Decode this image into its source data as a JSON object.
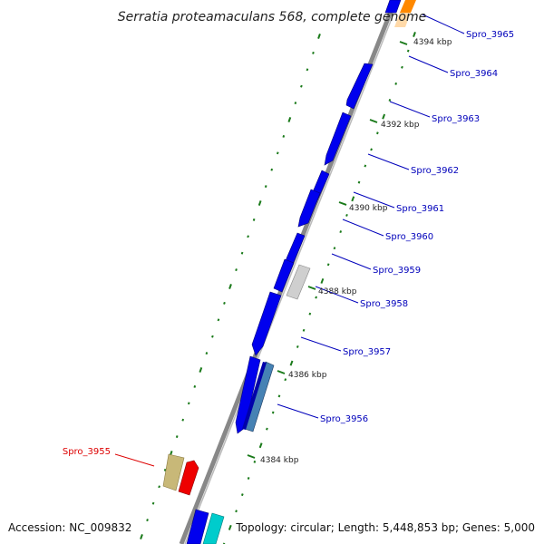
{
  "title": "Serratia proteamaculans 568, complete genome",
  "footer": {
    "accession": "Accession: NC_009832",
    "summary": "Topology: circular; Length: 5,448,853 bp; Genes: 5,000"
  },
  "colors": {
    "backbone": "#888888",
    "gene_blue": "#0000ee",
    "gene_highlight": "#ee0000",
    "gene_gray": "#c8c8c8",
    "gene_olive": "#c8b878",
    "gene_steel": "#4682b4",
    "gene_cyan": "#00cccc",
    "gene_orange": "#ff8800",
    "tick": "#1a7a1a",
    "label_blue": "#0000bb",
    "label_red": "#dd0000"
  },
  "scale": {
    "ticks": [
      "4394 kbp",
      "4392 kbp",
      "4390 kbp",
      "4388 kbp",
      "4386 kbp",
      "4384 kbp"
    ]
  },
  "genes": [
    {
      "name": "Spro_3965",
      "color": "gene_blue"
    },
    {
      "name": "Spro_3964",
      "color": "gene_blue"
    },
    {
      "name": "Spro_3963",
      "color": "gene_blue"
    },
    {
      "name": "Spro_3962",
      "color": "gene_blue"
    },
    {
      "name": "Spro_3961",
      "color": "gene_blue"
    },
    {
      "name": "Spro_3960",
      "color": "gene_blue"
    },
    {
      "name": "Spro_3959",
      "color": "gene_gray"
    },
    {
      "name": "Spro_3958",
      "color": "gene_blue"
    },
    {
      "name": "Spro_3957",
      "color": "gene_blue"
    },
    {
      "name": "Spro_3956",
      "color": "gene_steel"
    },
    {
      "name": "Spro_3955",
      "color": "gene_highlight"
    }
  ]
}
